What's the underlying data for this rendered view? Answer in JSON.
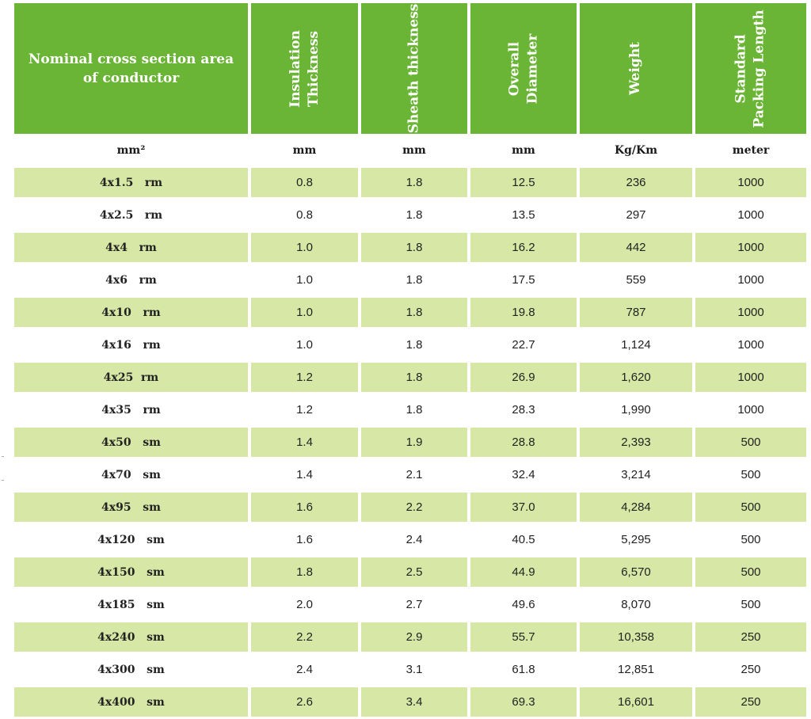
{
  "headers": [
    "Nominal cross section area of conductor",
    "Insulation\nThickness",
    "Sheath thickness",
    "Overall\nDiameter",
    "Weight",
    "Standard\nPacking Length"
  ],
  "units": [
    "mm²",
    "mm",
    "mm",
    "mm",
    "Kg/Km",
    "meter"
  ],
  "rows": [
    {
      "size": "4x1.5   rm",
      "insulation": "0.8",
      "sheath": "1.8",
      "diameter": "12.5",
      "weight": "236",
      "length": "1000"
    },
    {
      "size": "4x2.5   rm",
      "insulation": "0.8",
      "sheath": "1.8",
      "diameter": "13.5",
      "weight": "297",
      "length": "1000"
    },
    {
      "size": "4x4   rm",
      "insulation": "1.0",
      "sheath": "1.8",
      "diameter": "16.2",
      "weight": "442",
      "length": "1000"
    },
    {
      "size": "4x6   rm",
      "insulation": "1.0",
      "sheath": "1.8",
      "diameter": "17.5",
      "weight": "559",
      "length": "1000"
    },
    {
      "size": "4x10   rm",
      "insulation": "1.0",
      "sheath": "1.8",
      "diameter": "19.8",
      "weight": "787",
      "length": "1000"
    },
    {
      "size": "4x16   rm",
      "insulation": "1.0",
      "sheath": "1.8",
      "diameter": "22.7",
      "weight": "1,124",
      "length": "1000"
    },
    {
      "size": "4x25  rm",
      "insulation": "1.2",
      "sheath": "1.8",
      "diameter": "26.9",
      "weight": "1,620",
      "length": "1000"
    },
    {
      "size": "4x35   rm",
      "insulation": "1.2",
      "sheath": "1.8",
      "diameter": "28.3",
      "weight": "1,990",
      "length": "1000"
    },
    {
      "size": "4x50   sm",
      "insulation": "1.4",
      "sheath": "1.9",
      "diameter": "28.8",
      "weight": "2,393",
      "length": "500"
    },
    {
      "size": "4x70   sm",
      "insulation": "1.4",
      "sheath": "2.1",
      "diameter": "32.4",
      "weight": "3,214",
      "length": "500"
    },
    {
      "size": "4x95   sm",
      "insulation": "1.6",
      "sheath": "2.2",
      "diameter": "37.0",
      "weight": "4,284",
      "length": "500"
    },
    {
      "size": "4x120   sm",
      "insulation": "1.6",
      "sheath": "2.4",
      "diameter": "40.5",
      "weight": "5,295",
      "length": "500"
    },
    {
      "size": "4x150   sm",
      "insulation": "1.8",
      "sheath": "2.5",
      "diameter": "44.9",
      "weight": "6,570",
      "length": "500"
    },
    {
      "size": "4x185   sm",
      "insulation": "2.0",
      "sheath": "2.7",
      "diameter": "49.6",
      "weight": "8,070",
      "length": "500"
    },
    {
      "size": "4x240   sm",
      "insulation": "2.2",
      "sheath": "2.9",
      "diameter": "55.7",
      "weight": "10,358",
      "length": "250"
    },
    {
      "size": "4x300   sm",
      "insulation": "2.4",
      "sheath": "3.1",
      "diameter": "61.8",
      "weight": "12,851",
      "length": "250"
    },
    {
      "size": "4x400   sm",
      "insulation": "2.6",
      "sheath": "3.4",
      "diameter": "69.3",
      "weight": "16,601",
      "length": "250"
    }
  ]
}
